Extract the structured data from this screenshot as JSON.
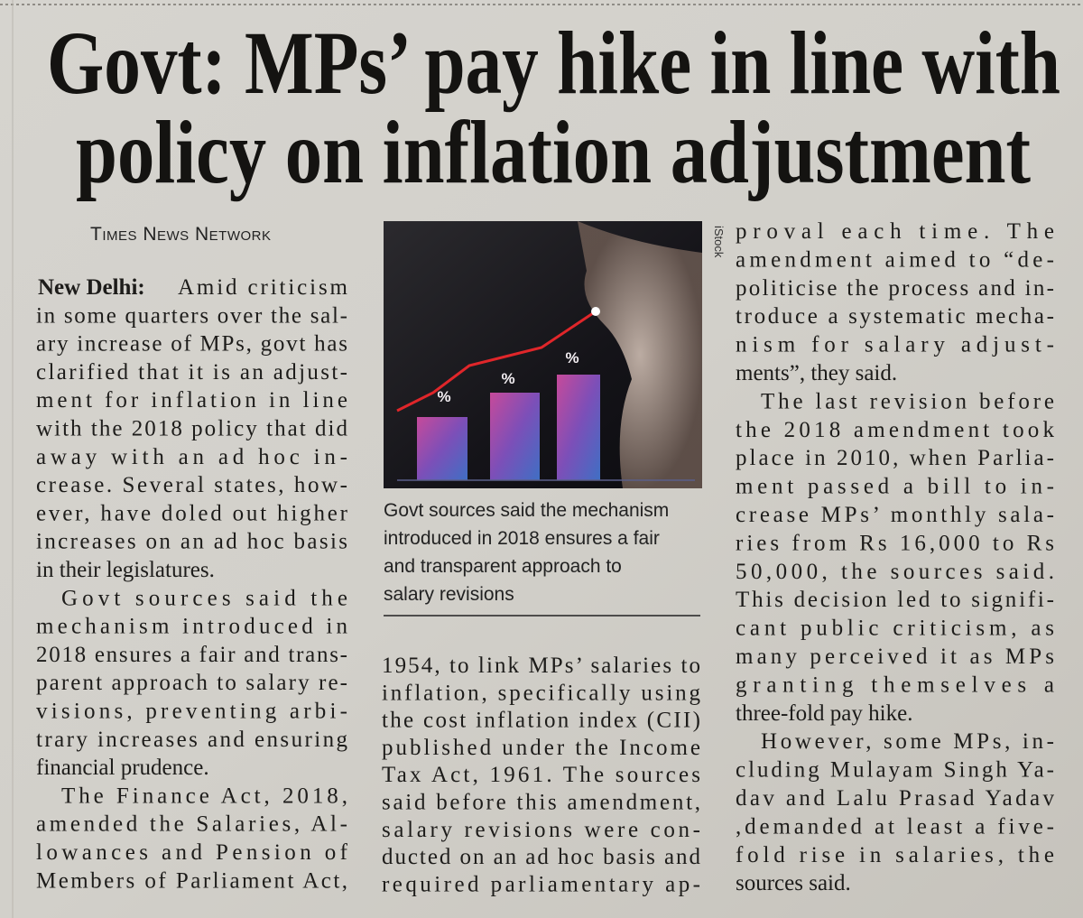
{
  "headline": {
    "lines": [
      "Govt: MPs’ pay hike in line with",
      "policy on inflation adjustment"
    ]
  },
  "byline": "Times News Network",
  "photo": {
    "credit": "iStock",
    "labels": [
      "%",
      "%",
      "%"
    ],
    "caption": {
      "lines": [
        "Govt sources said the mechanism",
        "introduced in 2018 ensures a fair",
        "and transparent approach to",
        "salary revisions"
      ]
    }
  },
  "columns": [
    {
      "paragraphs": [
        {
          "lead": "New Delhi:",
          "lines": [
            "Amid criticism",
            "in some quarters over the sal-",
            "ary increase of MPs, govt has",
            "clarified that it is an adjust-",
            "ment for inflation in line",
            "with the 2018 policy that did",
            "away with an ad hoc in-",
            "crease. Several states, how-",
            "ever, have doled out higher",
            "increases on an ad hoc basis",
            "in their legislatures."
          ]
        },
        {
          "lines": [
            "Govt sources said the",
            "mechanism introduced in",
            "2018 ensures a fair and trans-",
            "parent approach to salary re-",
            "visions, preventing arbi-",
            "trary increases and ensuring",
            "financial prudence."
          ]
        },
        {
          "lines": [
            "The Finance Act, 2018,",
            "amended the Salaries, Al-",
            "lowances and Pension of",
            "Members of Parliament Act,"
          ]
        }
      ]
    },
    {
      "paragraphs": [
        {
          "lines": [
            "1954, to link MPs’ salaries to",
            "inflation, specifically using",
            "the cost inflation index (CII)",
            "published under the Income",
            "Tax Act, 1961. The sources",
            "said before this amendment,",
            "salary revisions were con-",
            "ducted on an ad hoc basis and",
            "required parliamentary ap-"
          ]
        }
      ]
    },
    {
      "paragraphs": [
        {
          "lines": [
            "proval each time. The",
            "amendment aimed to “de-",
            "politicise the process and in-",
            "troduce a systematic mecha-",
            "nism for salary adjust-",
            "ments”, they said."
          ]
        },
        {
          "lines": [
            "The last revision before",
            "the 2018 amendment took",
            "place in 2010, when Parlia-",
            "ment passed a bill to in-",
            "crease MPs’ monthly sala-",
            "ries from Rs 16,000 to Rs",
            "50,000, the sources said.",
            "This decision led to signifi-",
            "cant public criticism, as",
            "many perceived it as MPs",
            "granting themselves a",
            "three-fold pay hike."
          ]
        },
        {
          "lines": [
            "However, some MPs, in-",
            "cluding Mulayam Singh Ya-",
            "dav and Lalu Prasad Yadav",
            ",demanded at least a five-",
            "fold rise in salaries, the",
            "sources said."
          ]
        }
      ]
    }
  ]
}
